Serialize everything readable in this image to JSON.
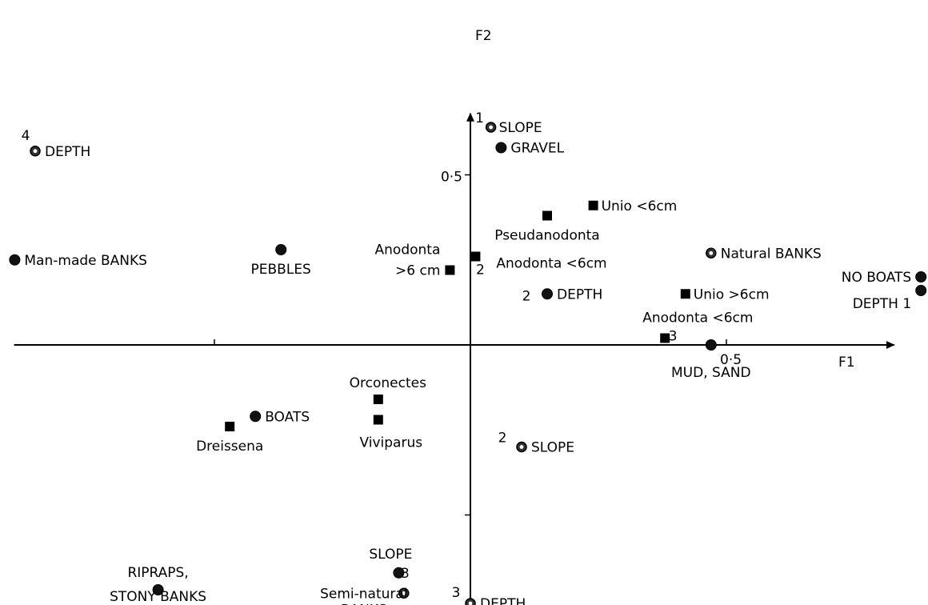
{
  "chart_data": {
    "type": "scatter",
    "title": "",
    "xlabel": "F1",
    "ylabel": "F2",
    "xlim": [
      -0.91,
      0.82
    ],
    "ylim": [
      -0.82,
      0.69
    ],
    "grid": false,
    "ticks": {
      "x": [
        {
          "value": -0.5,
          "label": ""
        },
        {
          "value": 0.5,
          "label": "0·5"
        }
      ],
      "y": [
        {
          "value": 0.5,
          "label": "0·5"
        },
        {
          "value": -0.5,
          "label": ""
        }
      ]
    },
    "points": [
      {
        "name": "DEPTH",
        "index": "4",
        "x": -0.85,
        "y": 0.57,
        "marker": "ring"
      },
      {
        "name": "SLOPE",
        "index": "1",
        "x": 0.04,
        "y": 0.64,
        "marker": "ring"
      },
      {
        "name": "GRAVEL",
        "index": "",
        "x": 0.06,
        "y": 0.58,
        "marker": "circle"
      },
      {
        "name": "Unio <6cm",
        "index": "",
        "x": 0.24,
        "y": 0.41,
        "marker": "square"
      },
      {
        "name": "Pseudanodonta",
        "index": "",
        "x": 0.15,
        "y": 0.38,
        "marker": "square"
      },
      {
        "name": "Natural BANKS",
        "index": "",
        "x": 0.47,
        "y": 0.27,
        "marker": "ring"
      },
      {
        "name": "Man-made BANKS",
        "index": "",
        "x": -0.89,
        "y": 0.25,
        "marker": "circle"
      },
      {
        "name": "PEBBLES",
        "index": "",
        "x": -0.37,
        "y": 0.28,
        "marker": "circle"
      },
      {
        "name": "Anodonta <6cm",
        "index": "2",
        "x": 0.01,
        "y": 0.26,
        "marker": "square"
      },
      {
        "name": "Anodonta >6 cm",
        "index": "",
        "x": -0.04,
        "y": 0.22,
        "marker": "square"
      },
      {
        "name": "NO BOATS",
        "index": "",
        "x": 0.88,
        "y": 0.2,
        "marker": "circle"
      },
      {
        "name": "DEPTH 1",
        "index": "",
        "x": 0.88,
        "y": 0.16,
        "marker": "circle"
      },
      {
        "name": "DEPTH",
        "index": "2",
        "x": 0.15,
        "y": 0.15,
        "marker": "circle"
      },
      {
        "name": "Unio >6cm",
        "index": "",
        "x": 0.42,
        "y": 0.15,
        "marker": "square"
      },
      {
        "name": "Anodonta <6cm",
        "index": "3",
        "x": 0.38,
        "y": 0.02,
        "marker": "square"
      },
      {
        "name": "MUD, SAND",
        "index": "",
        "x": 0.47,
        "y": 0.0,
        "marker": "circle"
      },
      {
        "name": "Orconectes",
        "index": "",
        "x": -0.18,
        "y": -0.16,
        "marker": "square"
      },
      {
        "name": "BOATS",
        "index": "",
        "x": -0.42,
        "y": -0.21,
        "marker": "circle"
      },
      {
        "name": "Dreissena",
        "index": "",
        "x": -0.47,
        "y": -0.24,
        "marker": "square"
      },
      {
        "name": "Viviparus",
        "index": "",
        "x": -0.18,
        "y": -0.22,
        "marker": "square"
      },
      {
        "name": "SLOPE",
        "index": "2",
        "x": 0.1,
        "y": -0.3,
        "marker": "ring"
      },
      {
        "name": "RIPRAPS, STONY BANKS",
        "index": "",
        "x": -0.61,
        "y": -0.72,
        "marker": "circle"
      },
      {
        "name": "SLOPE",
        "index": "3",
        "x": -0.14,
        "y": -0.67,
        "marker": "circle"
      },
      {
        "name": "Semi-natural BANKS",
        "index": "",
        "x": -0.13,
        "y": -0.73,
        "marker": "ring"
      },
      {
        "name": "DEPTH",
        "index": "3",
        "x": 0.0,
        "y": -0.76,
        "marker": "ring"
      }
    ]
  }
}
